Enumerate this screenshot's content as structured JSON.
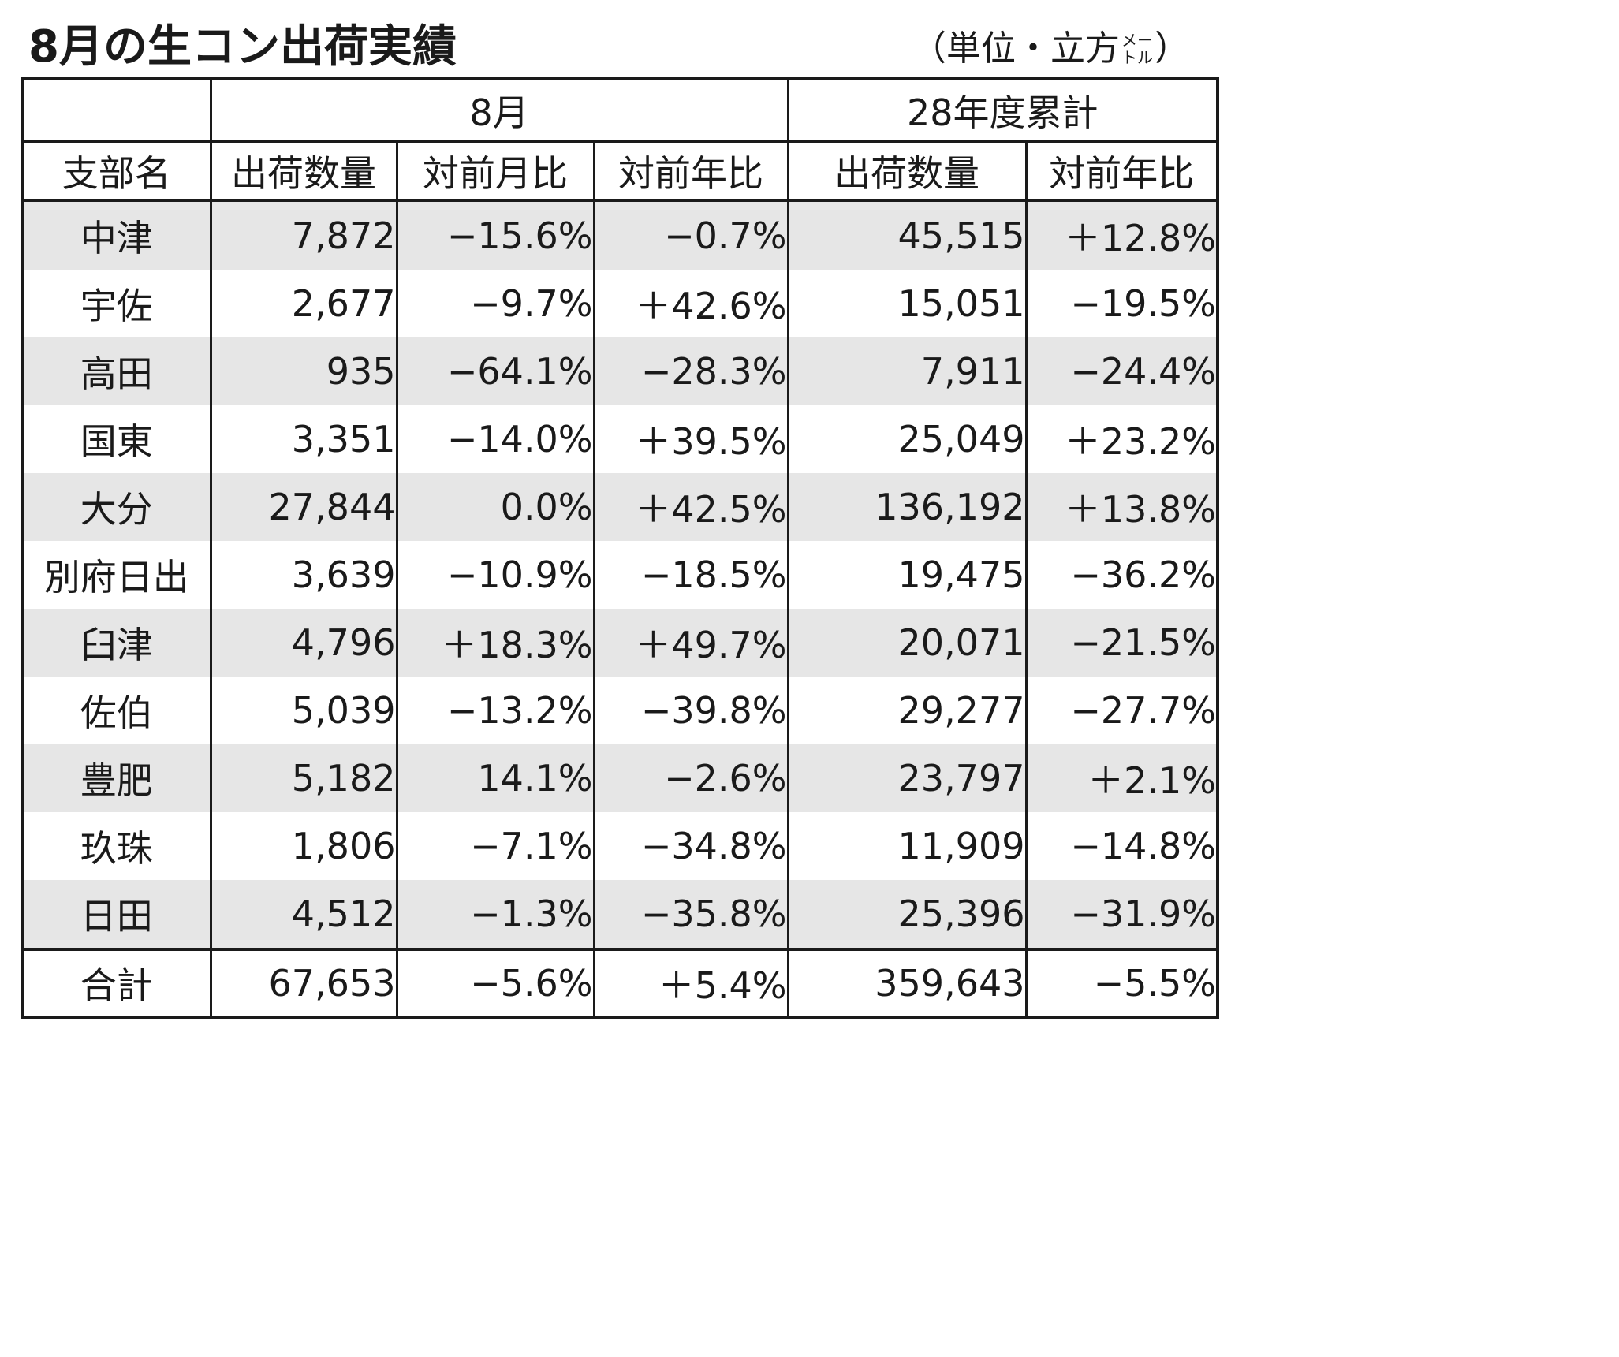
{
  "title": "8月の生コン出荷実績",
  "unit": {
    "open": "（単位・立方",
    "small_top": "メー",
    "small_bottom": "トル",
    "close": "）"
  },
  "chart_data": {
    "type": "table",
    "header_groups": [
      "",
      "8月",
      "28年度累計"
    ],
    "columns": [
      "支部名",
      "出荷数量",
      "対前月比",
      "対前年比",
      "出荷数量",
      "対前年比"
    ],
    "rows": [
      [
        "中津",
        "7,872",
        "−15.6%",
        "−0.7%",
        "45,515",
        "＋12.8%"
      ],
      [
        "宇佐",
        "2,677",
        "−9.7%",
        "＋42.6%",
        "15,051",
        "−19.5%"
      ],
      [
        "高田",
        "935",
        "−64.1%",
        "−28.3%",
        "7,911",
        "−24.4%"
      ],
      [
        "国東",
        "3,351",
        "−14.0%",
        "＋39.5%",
        "25,049",
        "＋23.2%"
      ],
      [
        "大分",
        "27,844",
        "0.0%",
        "＋42.5%",
        "136,192",
        "＋13.8%"
      ],
      [
        "別府日出",
        "3,639",
        "−10.9%",
        "−18.5%",
        "19,475",
        "−36.2%"
      ],
      [
        "臼津",
        "4,796",
        "＋18.3%",
        "＋49.7%",
        "20,071",
        "−21.5%"
      ],
      [
        "佐伯",
        "5,039",
        "−13.2%",
        "−39.8%",
        "29,277",
        "−27.7%"
      ],
      [
        "豊肥",
        "5,182",
        "14.1%",
        "−2.6%",
        "23,797",
        "＋2.1%"
      ],
      [
        "玖珠",
        "1,806",
        "−7.1%",
        "−34.8%",
        "11,909",
        "−14.8%"
      ],
      [
        "日田",
        "4,512",
        "−1.3%",
        "−35.8%",
        "25,396",
        "−31.9%"
      ]
    ],
    "total": [
      "合計",
      "67,653",
      "−5.6%",
      "＋5.4%",
      "359,643",
      "−5.5%"
    ],
    "stripe_color": "#e6e6e6",
    "line_color": "#1a1a1a"
  }
}
